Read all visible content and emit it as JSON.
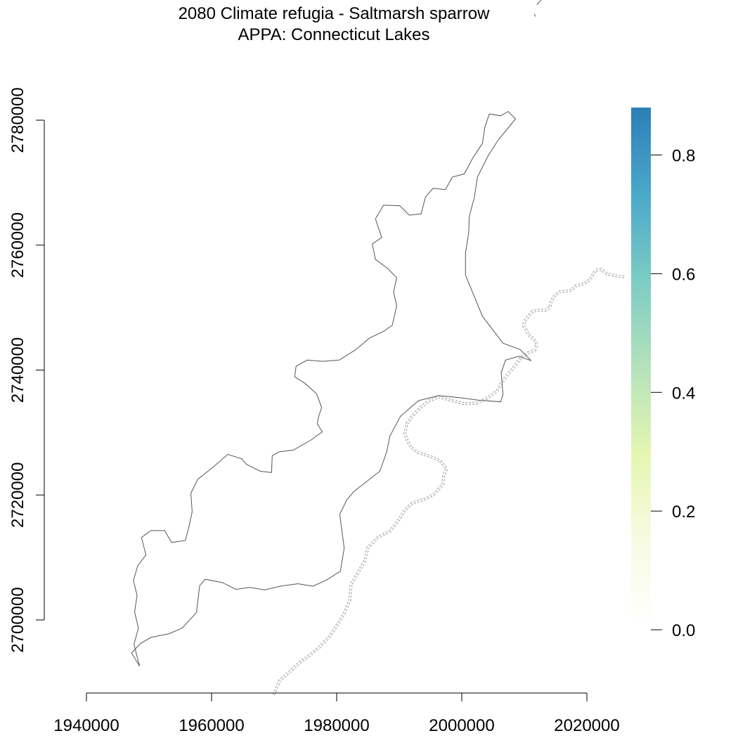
{
  "chart_data": {
    "type": "map",
    "title": "2080 Climate refugia - Saltmarsh sparrow",
    "subtitle": "APPA: Connecticut Lakes",
    "xlabel": "",
    "ylabel": "",
    "x_ticks": [
      1940000,
      1960000,
      1980000,
      2000000,
      2020000
    ],
    "x_tick_labels": [
      "1940000",
      "1960000",
      "1980000",
      "2000000",
      "2020000"
    ],
    "y_ticks": [
      2700000,
      2720000,
      2740000,
      2760000,
      2780000
    ],
    "y_tick_labels": [
      "2700000",
      "2720000",
      "2740000",
      "2760000",
      "2780000"
    ],
    "xlim": [
      1940000,
      2020000
    ],
    "ylim": [
      2688000,
      2800000
    ],
    "legend": {
      "type": "colorbar",
      "placement": "right",
      "range": [
        0.0,
        0.88
      ],
      "ticks": [
        0.0,
        0.2,
        0.4,
        0.6,
        0.8
      ],
      "tick_labels": [
        "0.0",
        "0.2",
        "0.4",
        "0.6",
        "0.8"
      ],
      "colors": [
        "#ffffff",
        "#f7fbe4",
        "#e6f6b1",
        "#b5e2bb",
        "#7dccc4",
        "#4aa8c9",
        "#2c7fb8"
      ]
    },
    "line_colors": {
      "boundary": "#555555",
      "state_line": "#aaaaaa"
    },
    "grid": false,
    "boundary_polygon": [
      [
        1948.5,
        2692.6
      ],
      [
        1947.2,
        2694.7
      ],
      [
        1948.6,
        2696.2
      ],
      [
        1950.3,
        2697.2
      ],
      [
        1953.2,
        2697.8
      ],
      [
        1955.3,
        2698.7
      ],
      [
        1957.6,
        2701.2
      ],
      [
        1958.1,
        2705.5
      ],
      [
        1959.0,
        2706.5
      ],
      [
        1961.7,
        2706.0
      ],
      [
        1963.9,
        2704.9
      ],
      [
        1966.1,
        2705.2
      ],
      [
        1968.5,
        2704.8
      ],
      [
        1971.0,
        2705.4
      ],
      [
        1973.8,
        2705.8
      ],
      [
        1976.2,
        2705.4
      ],
      [
        1978.4,
        2706.4
      ],
      [
        1980.6,
        2707.8
      ],
      [
        1981.2,
        2711.5
      ],
      [
        1980.5,
        2716.9
      ],
      [
        1981.6,
        2719.2
      ],
      [
        1982.8,
        2720.6
      ],
      [
        1984.6,
        2722.0
      ],
      [
        1986.9,
        2723.8
      ],
      [
        1988.0,
        2726.9
      ],
      [
        1988.5,
        2729.4
      ],
      [
        1990.2,
        2732.6
      ],
      [
        1993.1,
        2735.1
      ],
      [
        1996.3,
        2735.9
      ],
      [
        1999.5,
        2735.6
      ],
      [
        2002.6,
        2735.2
      ],
      [
        2006.2,
        2734.9
      ],
      [
        2006.6,
        2736.1
      ],
      [
        2006.3,
        2739.6
      ],
      [
        2007.0,
        2741.6
      ],
      [
        2009.1,
        2742.2
      ],
      [
        2011.1,
        2741.5
      ],
      [
        2009.3,
        2743.3
      ],
      [
        2006.6,
        2744.3
      ],
      [
        2003.3,
        2748.6
      ],
      [
        2000.6,
        2755.2
      ],
      [
        2000.6,
        2758.7
      ],
      [
        2001.1,
        2762.0
      ],
      [
        2001.2,
        2764.6
      ],
      [
        2002.0,
        2767.6
      ],
      [
        2002.5,
        2770.9
      ],
      [
        2004.1,
        2774.1
      ],
      [
        2005.8,
        2776.8
      ],
      [
        2007.7,
        2779.1
      ],
      [
        2008.6,
        2780.2
      ],
      [
        2007.4,
        2781.4
      ],
      [
        2006.2,
        2780.7
      ],
      [
        2004.4,
        2781.0
      ],
      [
        2003.7,
        2778.9
      ],
      [
        2003.3,
        2776.3
      ],
      [
        2001.8,
        2774.0
      ],
      [
        2000.4,
        2771.4
      ],
      [
        1998.5,
        2770.9
      ],
      [
        1997.4,
        2768.9
      ],
      [
        1995.4,
        2769.1
      ],
      [
        1994.2,
        2767.7
      ],
      [
        1993.5,
        2765.0
      ],
      [
        1991.6,
        2764.8
      ],
      [
        1990.1,
        2766.3
      ],
      [
        1987.5,
        2766.4
      ],
      [
        1986.2,
        2764.2
      ],
      [
        1987.2,
        2761.2
      ],
      [
        1985.7,
        2760.2
      ],
      [
        1986.2,
        2757.7
      ],
      [
        1988.1,
        2756.3
      ],
      [
        1989.6,
        2754.8
      ],
      [
        1989.1,
        2752.5
      ],
      [
        1989.6,
        2750.3
      ],
      [
        1988.9,
        2747.2
      ],
      [
        1987.5,
        2746.2
      ],
      [
        1985.2,
        2745.1
      ],
      [
        1983.1,
        2743.3
      ],
      [
        1980.4,
        2741.6
      ],
      [
        1977.7,
        2741.4
      ],
      [
        1975.3,
        2741.6
      ],
      [
        1973.5,
        2740.6
      ],
      [
        1973.3,
        2738.9
      ],
      [
        1974.9,
        2737.9
      ],
      [
        1976.8,
        2736.2
      ],
      [
        1977.6,
        2734.0
      ],
      [
        1977.1,
        2732.5
      ],
      [
        1976.9,
        2731.4
      ],
      [
        1977.7,
        2730.1
      ],
      [
        1975.9,
        2728.8
      ],
      [
        1973.1,
        2727.2
      ],
      [
        1970.8,
        2726.9
      ],
      [
        1969.7,
        2726.3
      ],
      [
        1969.6,
        2723.6
      ],
      [
        1967.8,
        2723.8
      ],
      [
        1965.6,
        2724.9
      ],
      [
        1964.8,
        2725.8
      ],
      [
        1962.6,
        2726.5
      ],
      [
        1960.4,
        2724.6
      ],
      [
        1957.8,
        2722.5
      ],
      [
        1956.7,
        2720.3
      ],
      [
        1956.9,
        2717.3
      ],
      [
        1956.4,
        2715.0
      ],
      [
        1955.8,
        2712.7
      ],
      [
        1953.6,
        2712.4
      ],
      [
        1952.5,
        2714.3
      ],
      [
        1950.3,
        2714.3
      ],
      [
        1948.8,
        2713.2
      ],
      [
        1949.5,
        2710.4
      ],
      [
        1948.2,
        2708.7
      ],
      [
        1947.5,
        2706.3
      ],
      [
        1948.1,
        2703.9
      ],
      [
        1947.7,
        2701.3
      ],
      [
        1948.3,
        2698.7
      ],
      [
        1947.6,
        2696.1
      ],
      [
        1948.5,
        2692.6
      ]
    ],
    "state_line": [
      [
        1969.9,
        2688.0
      ],
      [
        1970.9,
        2690.3
      ],
      [
        1972.6,
        2691.8
      ],
      [
        1974.1,
        2693.2
      ],
      [
        1975.5,
        2694.2
      ],
      [
        1977.2,
        2695.6
      ],
      [
        1978.9,
        2697.4
      ],
      [
        1980.1,
        2699.2
      ],
      [
        1981.2,
        2701.0
      ],
      [
        1982.1,
        2703.2
      ],
      [
        1982.3,
        2705.7
      ],
      [
        1983.5,
        2707.7
      ],
      [
        1984.5,
        2709.5
      ],
      [
        1985.0,
        2711.6
      ],
      [
        1986.6,
        2713.2
      ],
      [
        1988.6,
        2714.3
      ],
      [
        1989.8,
        2715.8
      ],
      [
        1990.9,
        2717.6
      ],
      [
        1992.1,
        2718.7
      ],
      [
        1994.2,
        2719.4
      ],
      [
        1995.5,
        2720.1
      ],
      [
        1997.0,
        2721.7
      ],
      [
        1997.1,
        2723.1
      ],
      [
        1997.6,
        2724.2
      ],
      [
        1996.5,
        2725.5
      ],
      [
        1994.9,
        2726.2
      ],
      [
        1993.0,
        2726.8
      ],
      [
        1991.9,
        2727.6
      ],
      [
        1991.3,
        2728.7
      ],
      [
        1990.9,
        2729.8
      ],
      [
        1991.2,
        2731.4
      ],
      [
        1992.0,
        2732.5
      ],
      [
        1993.4,
        2734.0
      ],
      [
        1994.6,
        2735.0
      ],
      [
        1996.3,
        2735.7
      ],
      [
        1998.4,
        2735.1
      ],
      [
        2000.4,
        2734.6
      ],
      [
        2002.3,
        2734.7
      ],
      [
        2004.1,
        2735.5
      ],
      [
        2005.6,
        2736.6
      ],
      [
        2006.4,
        2738.0
      ],
      [
        2007.4,
        2739.4
      ],
      [
        2008.6,
        2740.8
      ],
      [
        2009.6,
        2742.1
      ],
      [
        2010.7,
        2742.8
      ],
      [
        2011.7,
        2743.2
      ],
      [
        2012.0,
        2744.0
      ],
      [
        2011.8,
        2744.6
      ],
      [
        2011.2,
        2745.2
      ],
      [
        2010.6,
        2745.7
      ],
      [
        2010.3,
        2746.4
      ],
      [
        2009.9,
        2747.0
      ],
      [
        2010.0,
        2747.8
      ],
      [
        2010.8,
        2748.8
      ],
      [
        2011.3,
        2749.4
      ],
      [
        2012.4,
        2749.6
      ],
      [
        2013.4,
        2749.6
      ],
      [
        2014.1,
        2750.0
      ],
      [
        2014.3,
        2751.0
      ],
      [
        2014.9,
        2752.0
      ],
      [
        2015.6,
        2752.5
      ],
      [
        2016.5,
        2752.6
      ],
      [
        2017.5,
        2752.8
      ],
      [
        2018.3,
        2753.5
      ],
      [
        2019.5,
        2753.8
      ],
      [
        2020.4,
        2754.4
      ],
      [
        2021.0,
        2755.3
      ],
      [
        2021.4,
        2756.0
      ],
      [
        2022.3,
        2756.1
      ],
      [
        2023.2,
        2755.4
      ],
      [
        2024.6,
        2755.1
      ],
      [
        2026.0,
        2754.9
      ]
    ],
    "outlier_segments": [
      [
        [
          2012.0,
          2798.5
        ],
        [
          2013.2,
          2799.8
        ],
        [
          2013.8,
          2801.6
        ]
      ],
      [
        [
          2011.8,
          2796.6
        ],
        [
          2011.6,
          2797.0
        ]
      ]
    ],
    "outlier_note_units": "thousands"
  }
}
